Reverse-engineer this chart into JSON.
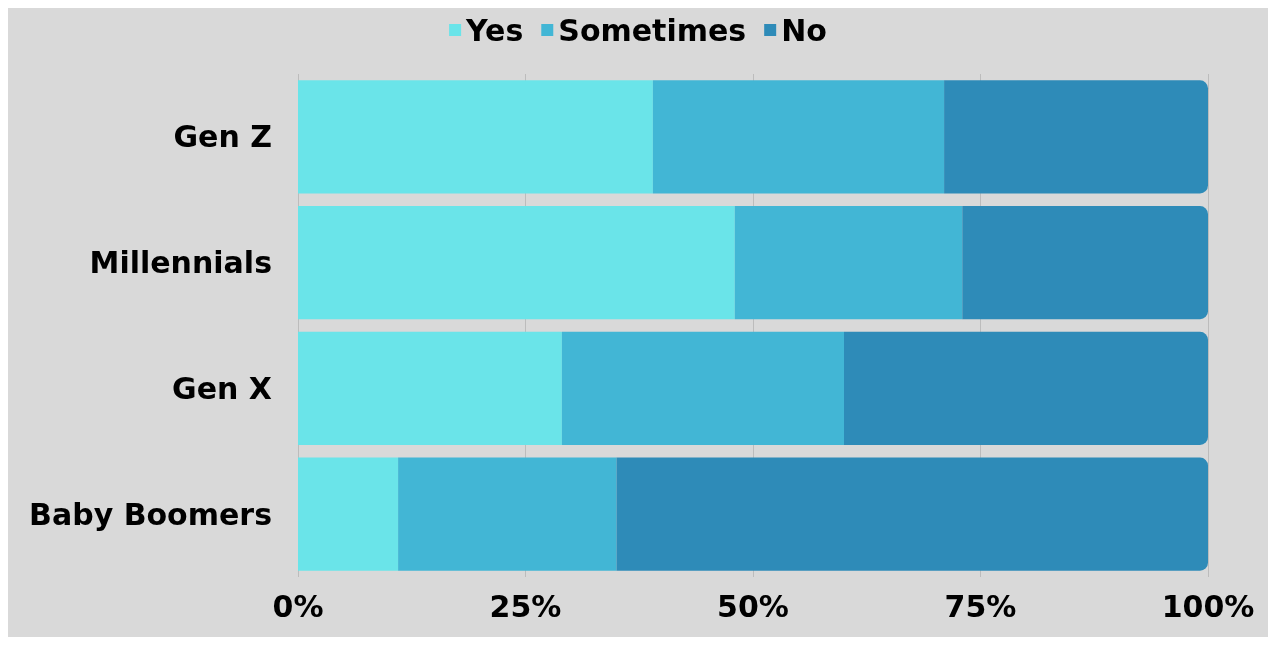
{
  "chart_data": {
    "type": "bar",
    "orientation": "horizontal",
    "stacked": true,
    "categories": [
      "Gen Z",
      "Millennials",
      "Gen X",
      "Baby Boomers"
    ],
    "series": [
      {
        "name": "Yes",
        "color": "#6ae4e9",
        "values": [
          39,
          48,
          29,
          11
        ]
      },
      {
        "name": "Sometimes",
        "color": "#42b6d5",
        "values": [
          32,
          25,
          31,
          24
        ]
      },
      {
        "name": "No",
        "color": "#2e8bb8",
        "values": [
          29,
          27,
          40,
          65
        ]
      }
    ],
    "xlim": [
      0,
      100
    ],
    "xticks": [
      {
        "value": 0,
        "label": "0%"
      },
      {
        "value": 25,
        "label": "25%"
      },
      {
        "value": 50,
        "label": "50%"
      },
      {
        "value": 75,
        "label": "75%"
      },
      {
        "value": 100,
        "label": "100%"
      }
    ],
    "grid": "x",
    "legend": "top"
  }
}
